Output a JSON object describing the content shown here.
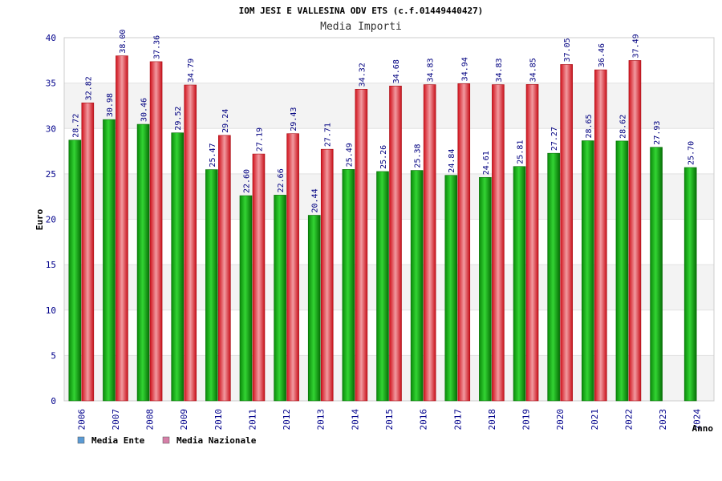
{
  "chart_data": {
    "type": "bar",
    "title": "IOM JESI E VALLESINA ODV ETS (c.f.01449440427)",
    "subtitle": "Media Importi",
    "xlabel": "Anno",
    "ylabel": "Euro",
    "ylim": [
      0,
      40
    ],
    "yticks": [
      0,
      5,
      10,
      15,
      20,
      25,
      30,
      35,
      40
    ],
    "categories": [
      "2006",
      "2007",
      "2008",
      "2009",
      "2010",
      "2011",
      "2012",
      "2013",
      "2014",
      "2015",
      "2016",
      "2017",
      "2018",
      "2019",
      "2020",
      "2021",
      "2022",
      "2023",
      "2024"
    ],
    "series": [
      {
        "name": "Media Ente",
        "color": "#1fa51f",
        "legend_color": "#5b9bd5",
        "values": [
          28.72,
          30.98,
          30.46,
          29.52,
          25.47,
          22.6,
          22.66,
          20.44,
          25.49,
          25.26,
          25.38,
          24.84,
          24.61,
          25.81,
          27.27,
          28.65,
          28.62,
          27.93,
          25.7
        ],
        "labels": [
          "28.72",
          "30.98",
          "30.46",
          "29.52",
          "25.47",
          "22.60",
          "22.66",
          "20.44",
          "25.49",
          "25.26",
          "25.38",
          "24.84",
          "24.61",
          "25.81",
          "27.27",
          "28.65",
          "28.62",
          "27.93",
          "25.70"
        ]
      },
      {
        "name": "Media Nazionale",
        "color": "#e3262e",
        "legend_color": "#d67fa8",
        "values": [
          32.82,
          38.0,
          37.36,
          34.79,
          29.24,
          27.19,
          29.43,
          27.71,
          34.32,
          34.68,
          34.83,
          34.94,
          34.83,
          34.85,
          37.05,
          36.46,
          37.49,
          null,
          null
        ],
        "labels": [
          "32.82",
          "38.00",
          "37.36",
          "34.79",
          "29.24",
          "27.19",
          "29.43",
          "27.71",
          "34.32",
          "34.68",
          "34.83",
          "34.94",
          "34.83",
          "34.85",
          "37.05",
          "36.46",
          "37.49",
          null,
          null
        ]
      }
    ],
    "grid": true,
    "legend_position": "bottom-left"
  }
}
